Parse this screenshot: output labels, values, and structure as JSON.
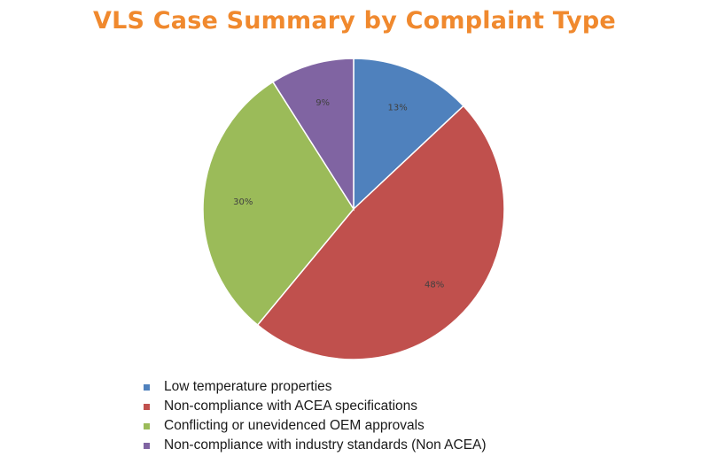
{
  "chart_data": {
    "type": "pie",
    "title": "VLS Case Summary by Complaint Type",
    "title_color": "#F0892E",
    "slices": [
      {
        "name": "Low temperature properties",
        "value": 13,
        "label": "13%",
        "color": "#4F81BD"
      },
      {
        "name": "Non-compliance with ACEA specifications",
        "value": 48,
        "label": "48%",
        "color": "#C0504D"
      },
      {
        "name": "Conflicting or unevidenced OEM approvals",
        "value": 30,
        "label": "30%",
        "color": "#9BBB59"
      },
      {
        "name": "Non-compliance with industry standards (Non ACEA)",
        "value": 9,
        "label": "9%",
        "color": "#8064A2"
      }
    ],
    "legend_position": "bottom"
  }
}
